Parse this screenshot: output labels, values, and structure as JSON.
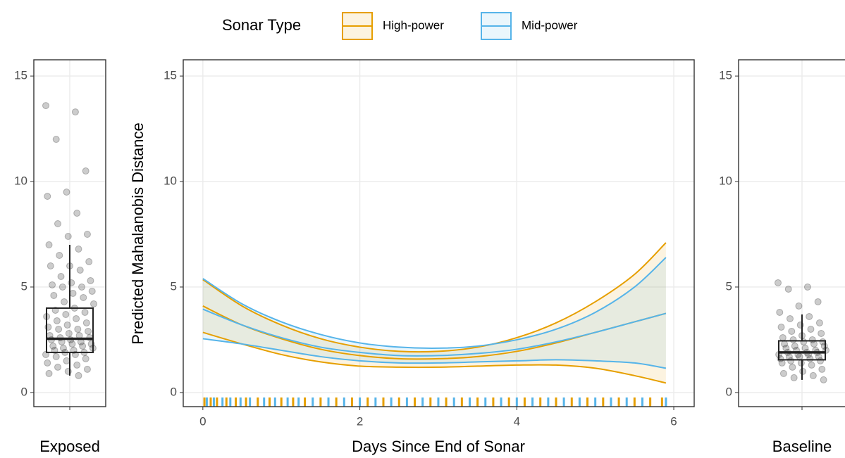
{
  "legend": {
    "title": "Sonar Type",
    "position": "top"
  },
  "chart_data": [
    {
      "type": "box",
      "categories": [
        "Exposed"
      ],
      "points": [
        13.6,
        13.3,
        12.0,
        10.5,
        9.5,
        9.3,
        8.5,
        8.0,
        7.5,
        7.4,
        7.0,
        6.8,
        6.5,
        6.2,
        6.0,
        6.0,
        5.8,
        5.5,
        5.3,
        5.2,
        5.1,
        5.0,
        5.0,
        4.8,
        4.7,
        4.6,
        4.5,
        4.3,
        4.2,
        4.0,
        3.9,
        3.8,
        3.7,
        3.6,
        3.5,
        3.4,
        3.3,
        3.2,
        3.1,
        3.0,
        3.0,
        2.9,
        2.8,
        2.7,
        2.7,
        2.6,
        2.6,
        2.5,
        2.5,
        2.4,
        2.4,
        2.3,
        2.3,
        2.2,
        2.2,
        2.1,
        2.1,
        2.0,
        2.0,
        1.9,
        1.9,
        1.8,
        1.8,
        1.7,
        1.6,
        1.5,
        1.4,
        1.3,
        1.2,
        1.1,
        1.0,
        0.9,
        0.8
      ],
      "box": {
        "min": 0.8,
        "q1": 1.9,
        "median": 2.55,
        "q3": 4.0,
        "max": 7.0
      },
      "ylim": [
        -0.67,
        15.77
      ],
      "yticks": [
        0,
        5,
        10,
        15
      ],
      "grid": true
    },
    {
      "type": "line",
      "y_label": "Predicted Mahalanobis Distance",
      "x_label": "Days Since End of Sonar",
      "x": [
        0,
        0.5,
        1,
        1.5,
        2,
        2.5,
        3,
        3.5,
        4,
        4.5,
        5,
        5.5,
        5.9
      ],
      "series": [
        {
          "name": "High-power",
          "color": "#E69F00",
          "values": [
            4.1,
            3.2,
            2.55,
            2.05,
            1.75,
            1.6,
            1.6,
            1.7,
            1.95,
            2.35,
            2.85,
            3.35,
            3.75
          ],
          "upper": [
            5.35,
            4.1,
            3.2,
            2.55,
            2.15,
            1.95,
            1.95,
            2.15,
            2.6,
            3.3,
            4.3,
            5.6,
            7.1
          ],
          "lower": [
            2.85,
            2.3,
            1.8,
            1.45,
            1.25,
            1.2,
            1.2,
            1.25,
            1.3,
            1.3,
            1.15,
            0.8,
            0.45
          ],
          "rug": [
            0.02,
            0.1,
            0.18,
            0.3,
            0.42,
            0.55,
            0.7,
            0.85,
            1.0,
            1.15,
            1.3,
            1.5,
            1.7,
            1.9,
            2.1,
            2.3,
            2.5,
            2.7,
            2.9,
            3.1,
            3.3,
            3.5,
            3.7,
            3.9,
            4.1,
            4.3,
            4.5,
            4.7,
            4.9,
            5.1,
            5.3,
            5.5,
            5.7,
            5.85
          ]
        },
        {
          "name": "Mid-power",
          "color": "#56B4E9",
          "values": [
            3.95,
            3.2,
            2.6,
            2.15,
            1.9,
            1.75,
            1.75,
            1.85,
            2.05,
            2.4,
            2.85,
            3.35,
            3.75
          ],
          "upper": [
            5.4,
            4.2,
            3.35,
            2.75,
            2.35,
            2.15,
            2.1,
            2.2,
            2.5,
            3.0,
            3.8,
            5.0,
            6.4
          ],
          "lower": [
            2.55,
            2.3,
            2.0,
            1.7,
            1.5,
            1.4,
            1.4,
            1.45,
            1.5,
            1.55,
            1.5,
            1.4,
            1.15
          ],
          "rug": [
            0.05,
            0.14,
            0.25,
            0.35,
            0.48,
            0.6,
            0.78,
            0.92,
            1.08,
            1.22,
            1.4,
            1.6,
            1.8,
            2.0,
            2.2,
            2.4,
            2.6,
            2.8,
            3.0,
            3.2,
            3.4,
            3.6,
            3.8,
            4.0,
            4.2,
            4.4,
            4.6,
            4.8,
            5.0,
            5.2,
            5.4,
            5.6,
            5.9
          ]
        }
      ],
      "xlim": [
        -0.25,
        6.26
      ],
      "xticks": [
        0,
        2,
        4,
        6
      ],
      "ylim": [
        -0.67,
        15.77
      ],
      "yticks": [
        0,
        5,
        10,
        15
      ],
      "grid": true
    },
    {
      "type": "box",
      "categories": [
        "Baseline"
      ],
      "points": [
        5.2,
        5.0,
        4.9,
        4.3,
        4.1,
        3.8,
        3.6,
        3.5,
        3.3,
        3.2,
        3.1,
        3.0,
        2.9,
        2.8,
        2.7,
        2.6,
        2.5,
        2.5,
        2.4,
        2.4,
        2.3,
        2.3,
        2.2,
        2.2,
        2.1,
        2.1,
        2.0,
        2.0,
        2.0,
        1.9,
        1.9,
        1.9,
        1.8,
        1.8,
        1.8,
        1.7,
        1.7,
        1.7,
        1.6,
        1.6,
        1.5,
        1.5,
        1.4,
        1.4,
        1.3,
        1.2,
        1.1,
        1.0,
        0.9,
        0.8,
        0.7,
        0.6
      ],
      "box": {
        "min": 0.6,
        "q1": 1.55,
        "median": 1.9,
        "q3": 2.45,
        "max": 3.7
      },
      "ylim": [
        -0.67,
        15.77
      ],
      "yticks": [
        0,
        5,
        10,
        15
      ],
      "grid": true
    }
  ]
}
